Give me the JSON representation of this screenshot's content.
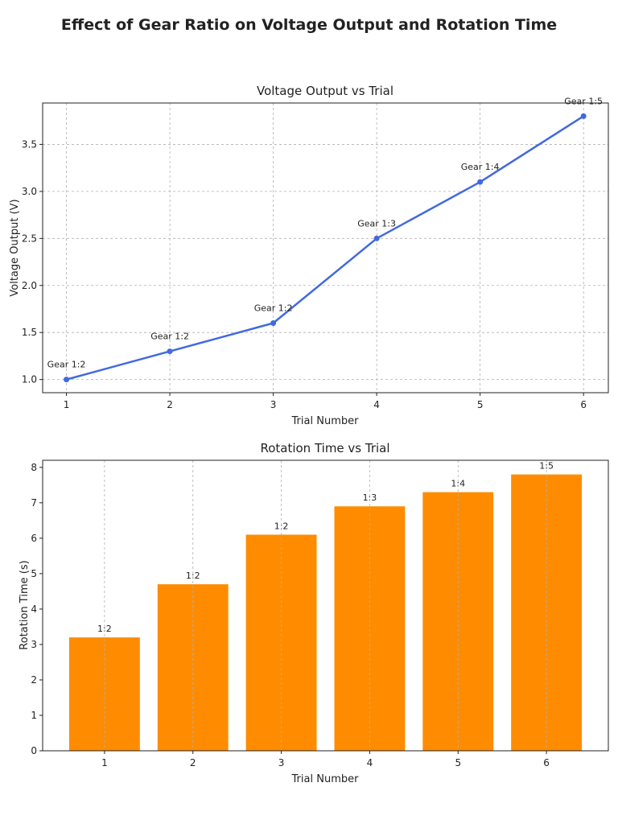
{
  "figure_title": "Effect of Gear Ratio on Voltage Output and Rotation Time",
  "chart_data": [
    {
      "type": "line",
      "title": "Voltage Output vs Trial",
      "xlabel": "Trial Number",
      "ylabel": "Voltage Output (V)",
      "x": [
        1,
        2,
        3,
        4,
        5,
        6
      ],
      "values": [
        1.0,
        1.3,
        1.6,
        2.5,
        3.1,
        3.8
      ],
      "point_labels": [
        "Gear 1:2",
        "Gear 1:2",
        "Gear 1:2",
        "Gear 1:3",
        "Gear 1:4",
        "Gear 1:5"
      ],
      "xticks": [
        "1",
        "2",
        "3",
        "4",
        "5",
        "6"
      ],
      "yticks": [
        "1.0",
        "1.5",
        "2.0",
        "2.5",
        "3.0",
        "3.5"
      ],
      "xlim": [
        0.77,
        6.24
      ],
      "ylim": [
        0.86,
        3.94
      ],
      "grid": true,
      "color": "#4169E1"
    },
    {
      "type": "bar",
      "title": "Rotation Time vs Trial",
      "xlabel": "Trial Number",
      "ylabel": "Rotation Time (s)",
      "categories": [
        "1",
        "2",
        "3",
        "4",
        "5",
        "6"
      ],
      "values": [
        3.2,
        4.7,
        6.1,
        6.9,
        7.3,
        7.8
      ],
      "bar_labels": [
        "1:2",
        "1:2",
        "1:2",
        "1:3",
        "1:4",
        "1:5"
      ],
      "yticks": [
        "0",
        "1",
        "2",
        "3",
        "4",
        "5",
        "6",
        "7",
        "8"
      ],
      "xlim": [
        0.3,
        6.7
      ],
      "ylim": [
        0,
        8.2
      ],
      "grid": true,
      "color": "#FF8C00"
    }
  ]
}
